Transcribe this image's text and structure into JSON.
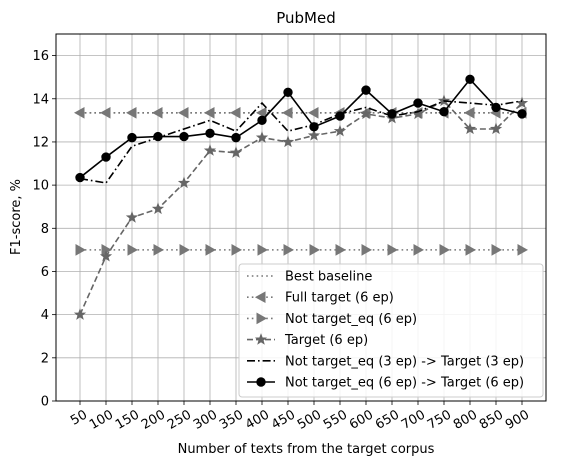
{
  "chart_data": {
    "type": "line",
    "title": "PubMed",
    "xlabel": "Number of texts from the target corpus",
    "ylabel": "F1-score, %",
    "x": [
      50,
      100,
      150,
      200,
      250,
      300,
      350,
      400,
      450,
      500,
      550,
      600,
      650,
      700,
      750,
      800,
      850,
      900
    ],
    "ylim": [
      0,
      17
    ],
    "yticks": [
      0,
      2,
      4,
      6,
      8,
      10,
      12,
      14,
      16
    ],
    "grid": true,
    "legend_position": "lower-right",
    "series": [
      {
        "name": "Best baseline",
        "style": "dotted",
        "marker": "none",
        "color": "#777777",
        "values": [
          13.35,
          13.35,
          13.35,
          13.35,
          13.35,
          13.35,
          13.35,
          13.35,
          13.35,
          13.35,
          13.35,
          13.35,
          13.35,
          13.35,
          13.35,
          13.35,
          13.35,
          13.35
        ]
      },
      {
        "name": "Full target (6 ep)",
        "style": "dotted",
        "marker": "triangle-left",
        "color": "#777777",
        "values": [
          13.35,
          13.35,
          13.35,
          13.35,
          13.35,
          13.35,
          13.35,
          13.35,
          13.35,
          13.35,
          13.35,
          13.35,
          13.35,
          13.35,
          13.35,
          13.35,
          13.35,
          13.35
        ]
      },
      {
        "name": "Not target_eq (6 ep)",
        "style": "dotted",
        "marker": "triangle-right",
        "color": "#777777",
        "values": [
          7.0,
          7.0,
          7.0,
          7.0,
          7.0,
          7.0,
          7.0,
          7.0,
          7.0,
          7.0,
          7.0,
          7.0,
          7.0,
          7.0,
          7.0,
          7.0,
          7.0,
          7.0
        ]
      },
      {
        "name": "Target (6 ep)",
        "style": "dashed",
        "marker": "star",
        "color": "#666666",
        "values": [
          4.0,
          6.7,
          8.5,
          8.9,
          10.1,
          11.6,
          11.5,
          12.2,
          12.0,
          12.3,
          12.5,
          13.3,
          13.1,
          13.3,
          13.9,
          12.6,
          12.6,
          13.8
        ]
      },
      {
        "name": "Not target_eq (3 ep) -> Target (3 ep)",
        "style": "dashdot",
        "marker": "none",
        "color": "#000000",
        "values": [
          10.3,
          10.1,
          11.8,
          12.2,
          12.6,
          13.0,
          12.5,
          13.8,
          12.5,
          12.8,
          13.3,
          13.6,
          13.2,
          13.4,
          13.9,
          13.8,
          13.7,
          13.9
        ]
      },
      {
        "name": "Not target_eq (6 ep) -> Target (6 ep)",
        "style": "solid",
        "marker": "circle",
        "color": "#000000",
        "values": [
          10.35,
          11.3,
          12.2,
          12.25,
          12.25,
          12.4,
          12.2,
          13.0,
          14.3,
          12.7,
          13.2,
          14.4,
          13.3,
          13.8,
          13.4,
          14.9,
          13.6,
          13.3
        ]
      }
    ]
  }
}
